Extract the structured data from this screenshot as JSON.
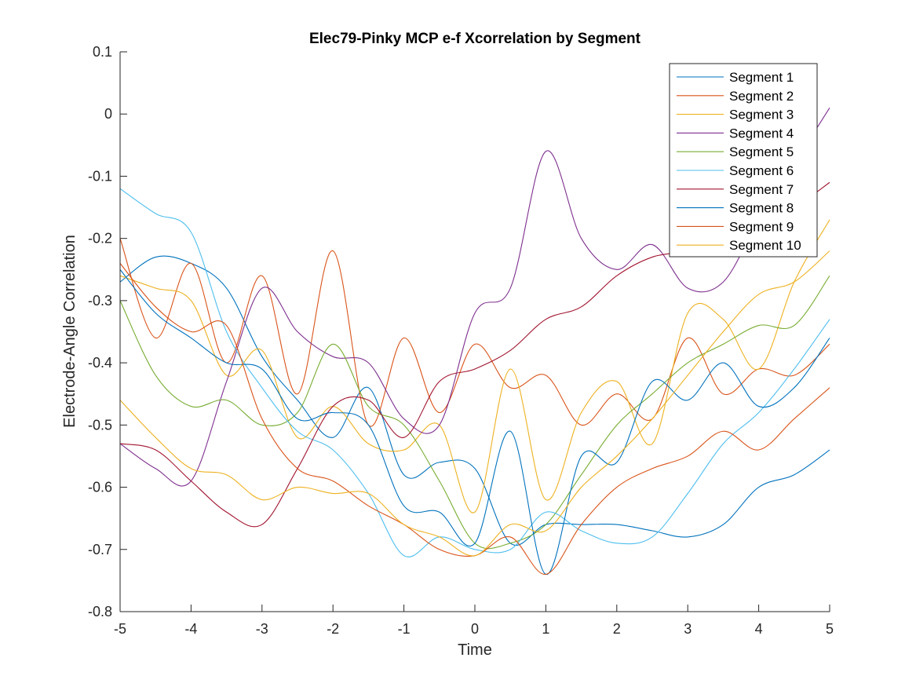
{
  "chart_data": {
    "type": "line",
    "title": "Elec79-Pinky MCP e-f Xcorrelation by Segment",
    "xlabel": "Time",
    "ylabel": "Electrode-Angle Correlation",
    "xlim": [
      -5,
      5
    ],
    "ylim": [
      -0.8,
      0.1
    ],
    "xticks": [
      -5,
      -4,
      -3,
      -2,
      -1,
      0,
      1,
      2,
      3,
      4,
      5
    ],
    "yticks": [
      -0.8,
      -0.7,
      -0.6,
      -0.5,
      -0.4,
      -0.3,
      -0.2,
      -0.1,
      0,
      0.1
    ],
    "ytick_labels": [
      "-0.8",
      "-0.7",
      "-0.6",
      "-0.5",
      "-0.4",
      "-0.3",
      "-0.2",
      "-0.1",
      "0",
      "0.1"
    ],
    "grid": false,
    "legend_position": "top-right",
    "x": [
      -5,
      -4.5,
      -4,
      -3.5,
      -3,
      -2.5,
      -2,
      -1.5,
      -1,
      -0.5,
      0,
      0.5,
      1,
      1.5,
      2,
      2.5,
      3,
      3.5,
      4,
      4.5,
      5
    ],
    "series": [
      {
        "name": "Segment 1",
        "color": "#0072BD",
        "values": [
          -0.27,
          -0.23,
          -0.24,
          -0.28,
          -0.39,
          -0.46,
          -0.52,
          -0.44,
          -0.58,
          -0.56,
          -0.57,
          -0.69,
          -0.66,
          -0.66,
          -0.66,
          -0.67,
          -0.68,
          -0.66,
          -0.6,
          -0.58,
          -0.54
        ]
      },
      {
        "name": "Segment 2",
        "color": "#D95319",
        "values": [
          -0.2,
          -0.36,
          -0.24,
          -0.4,
          -0.26,
          -0.45,
          -0.22,
          -0.5,
          -0.36,
          -0.48,
          -0.37,
          -0.44,
          -0.42,
          -0.5,
          -0.45,
          -0.49,
          -0.36,
          -0.45,
          -0.41,
          -0.42,
          -0.37
        ]
      },
      {
        "name": "Segment 3",
        "color": "#EDB120",
        "values": [
          -0.26,
          -0.28,
          -0.3,
          -0.42,
          -0.38,
          -0.52,
          -0.47,
          -0.53,
          -0.54,
          -0.5,
          -0.64,
          -0.41,
          -0.62,
          -0.48,
          -0.43,
          -0.53,
          -0.32,
          -0.33,
          -0.41,
          -0.27,
          -0.17
        ]
      },
      {
        "name": "Segment 4",
        "color": "#7E2F8E",
        "values": [
          -0.53,
          -0.57,
          -0.59,
          -0.43,
          -0.28,
          -0.35,
          -0.39,
          -0.4,
          -0.49,
          -0.5,
          -0.32,
          -0.28,
          -0.06,
          -0.2,
          -0.25,
          -0.21,
          -0.28,
          -0.27,
          -0.17,
          -0.08,
          0.01
        ]
      },
      {
        "name": "Segment 5",
        "color": "#77AC30",
        "values": [
          -0.3,
          -0.42,
          -0.47,
          -0.46,
          -0.5,
          -0.48,
          -0.37,
          -0.47,
          -0.5,
          -0.59,
          -0.69,
          -0.69,
          -0.66,
          -0.58,
          -0.5,
          -0.45,
          -0.4,
          -0.37,
          -0.34,
          -0.34,
          -0.26
        ]
      },
      {
        "name": "Segment 6",
        "color": "#4DBEEE",
        "values": [
          -0.12,
          -0.16,
          -0.19,
          -0.35,
          -0.44,
          -0.51,
          -0.54,
          -0.61,
          -0.71,
          -0.68,
          -0.7,
          -0.7,
          -0.64,
          -0.67,
          -0.69,
          -0.68,
          -0.61,
          -0.53,
          -0.48,
          -0.41,
          -0.33
        ]
      },
      {
        "name": "Segment 7",
        "color": "#A2142F",
        "values": [
          -0.53,
          -0.54,
          -0.59,
          -0.64,
          -0.66,
          -0.57,
          -0.47,
          -0.46,
          -0.52,
          -0.43,
          -0.41,
          -0.38,
          -0.33,
          -0.31,
          -0.26,
          -0.23,
          -0.22,
          -0.2,
          -0.17,
          -0.15,
          -0.11
        ]
      },
      {
        "name": "Segment 8",
        "color": "#0072BD",
        "values": [
          -0.25,
          -0.32,
          -0.36,
          -0.4,
          -0.41,
          -0.49,
          -0.48,
          -0.5,
          -0.63,
          -0.64,
          -0.69,
          -0.51,
          -0.74,
          -0.55,
          -0.56,
          -0.43,
          -0.46,
          -0.4,
          -0.47,
          -0.44,
          -0.36
        ]
      },
      {
        "name": "Segment 9",
        "color": "#D95319",
        "values": [
          -0.24,
          -0.31,
          -0.35,
          -0.34,
          -0.49,
          -0.57,
          -0.59,
          -0.63,
          -0.66,
          -0.7,
          -0.71,
          -0.68,
          -0.74,
          -0.66,
          -0.6,
          -0.57,
          -0.55,
          -0.51,
          -0.54,
          -0.49,
          -0.44
        ]
      },
      {
        "name": "Segment 10",
        "color": "#EDB120",
        "values": [
          -0.46,
          -0.52,
          -0.57,
          -0.58,
          -0.62,
          -0.6,
          -0.61,
          -0.61,
          -0.66,
          -0.68,
          -0.71,
          -0.66,
          -0.67,
          -0.6,
          -0.55,
          -0.49,
          -0.42,
          -0.35,
          -0.29,
          -0.27,
          -0.22
        ]
      }
    ]
  }
}
